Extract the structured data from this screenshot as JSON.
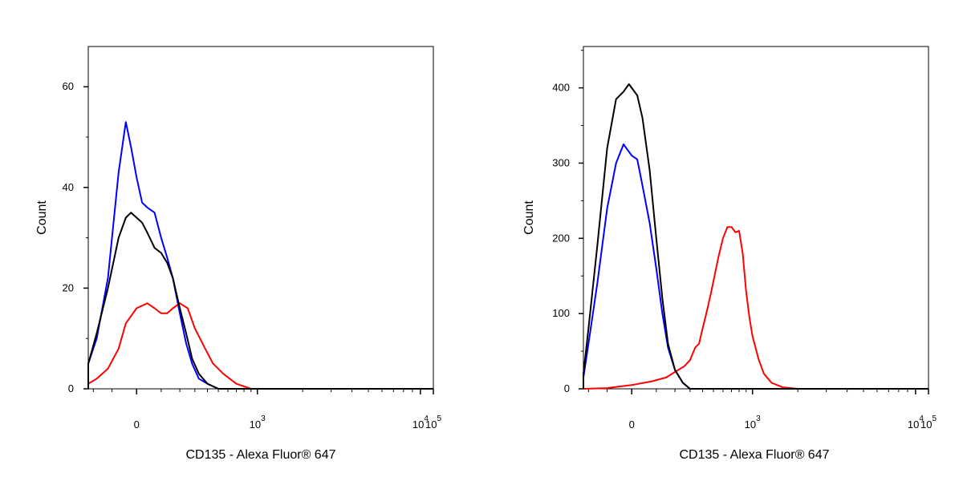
{
  "chart_data": [
    {
      "type": "line",
      "panel": "left",
      "xlabel": "CD135 - Alexa Fluor® 647",
      "ylabel": "Count",
      "y_ticks": [
        0,
        20,
        40,
        60
      ],
      "y_tick_labels": [
        "0",
        "20",
        "40",
        "60"
      ],
      "ylim": [
        0,
        68
      ],
      "x_scale": "biexponential",
      "x_tick_labels": [
        {
          "base": "0",
          "exp": ""
        },
        {
          "base": "10",
          "exp": "3"
        },
        {
          "base": "10",
          "exp": "4"
        },
        {
          "base": "10",
          "exp": "5"
        }
      ],
      "series": [
        {
          "color": "#0000ff",
          "x": [
            -2000,
            -700,
            -500,
            -350,
            -250,
            -180,
            -120,
            -70,
            -40,
            -20,
            0,
            20,
            40,
            70,
            100,
            130,
            160,
            200,
            240,
            280,
            330,
            400,
            500,
            650,
            900,
            5000,
            200000
          ],
          "y": [
            0,
            0,
            1,
            2,
            5,
            10,
            22,
            43,
            53,
            48,
            42,
            37,
            36,
            35,
            30,
            26,
            22,
            15,
            9,
            5,
            2,
            1,
            0,
            0,
            0,
            0,
            0
          ]
        },
        {
          "color": "#000000",
          "x": [
            -2000,
            -700,
            -500,
            -350,
            -250,
            -180,
            -120,
            -70,
            -40,
            -20,
            0,
            20,
            40,
            70,
            100,
            130,
            160,
            200,
            240,
            280,
            330,
            400,
            500,
            650,
            900,
            5000,
            200000
          ],
          "y": [
            0,
            0,
            1,
            2,
            5,
            11,
            20,
            30,
            34,
            35,
            34,
            33,
            31,
            28,
            27,
            25,
            22,
            16,
            11,
            6,
            3,
            1,
            0,
            0,
            0,
            0,
            0
          ]
        },
        {
          "color": "#ff0000",
          "x": [
            -2000,
            -700,
            -500,
            -350,
            -250,
            -180,
            -120,
            -70,
            -40,
            0,
            40,
            70,
            100,
            130,
            160,
            200,
            250,
            300,
            380,
            450,
            550,
            700,
            900,
            1300,
            5000,
            200000
          ],
          "y": [
            0,
            0,
            0,
            0,
            1,
            2,
            4,
            8,
            13,
            16,
            17,
            16,
            15,
            15,
            16,
            17,
            16,
            12,
            8,
            5,
            3,
            1,
            0,
            0,
            0,
            0
          ]
        }
      ]
    },
    {
      "type": "line",
      "panel": "right",
      "xlabel": "CD135 - Alexa Fluor® 647",
      "ylabel": "Count",
      "y_ticks": [
        0,
        100,
        200,
        300,
        400
      ],
      "y_tick_labels": [
        "0",
        "100",
        "200",
        "300",
        "400"
      ],
      "ylim": [
        0,
        455
      ],
      "x_scale": "biexponential",
      "x_tick_labels": [
        {
          "base": "0",
          "exp": ""
        },
        {
          "base": "10",
          "exp": "3"
        },
        {
          "base": "10",
          "exp": "4"
        },
        {
          "base": "10",
          "exp": "5"
        }
      ],
      "series": [
        {
          "color": "#0000ff",
          "x": [
            -2000,
            -600,
            -450,
            -350,
            -270,
            -200,
            -150,
            -100,
            -60,
            -30,
            0,
            20,
            40,
            70,
            100,
            130,
            160,
            200,
            250,
            300,
            2000,
            200000
          ],
          "y": [
            0,
            0,
            2,
            5,
            15,
            60,
            140,
            240,
            300,
            325,
            310,
            305,
            270,
            220,
            160,
            100,
            55,
            25,
            8,
            0,
            0,
            0
          ]
        },
        {
          "color": "#000000",
          "x": [
            -2000,
            -600,
            -450,
            -350,
            -270,
            -200,
            -150,
            -100,
            -60,
            -30,
            -10,
            0,
            20,
            40,
            70,
            100,
            130,
            160,
            200,
            250,
            300,
            2000,
            200000
          ],
          "y": [
            0,
            0,
            2,
            6,
            20,
            80,
            190,
            320,
            385,
            395,
            405,
            400,
            390,
            360,
            290,
            200,
            120,
            60,
            25,
            8,
            0,
            0,
            0
          ]
        },
        {
          "color": "#ff0000",
          "x": [
            -2000,
            -700,
            -300,
            -100,
            0,
            80,
            150,
            220,
            260,
            300,
            340,
            370,
            400,
            440,
            480,
            550,
            600,
            650,
            700,
            750,
            800,
            850,
            900,
            950,
            1000,
            1100,
            1200,
            1350,
            1600,
            2000,
            3000,
            200000
          ],
          "y": [
            0,
            0,
            0,
            1,
            5,
            10,
            15,
            25,
            30,
            38,
            55,
            60,
            80,
            105,
            130,
            175,
            200,
            215,
            215,
            208,
            210,
            180,
            130,
            95,
            70,
            40,
            20,
            8,
            2,
            0,
            0,
            0
          ]
        }
      ]
    }
  ]
}
